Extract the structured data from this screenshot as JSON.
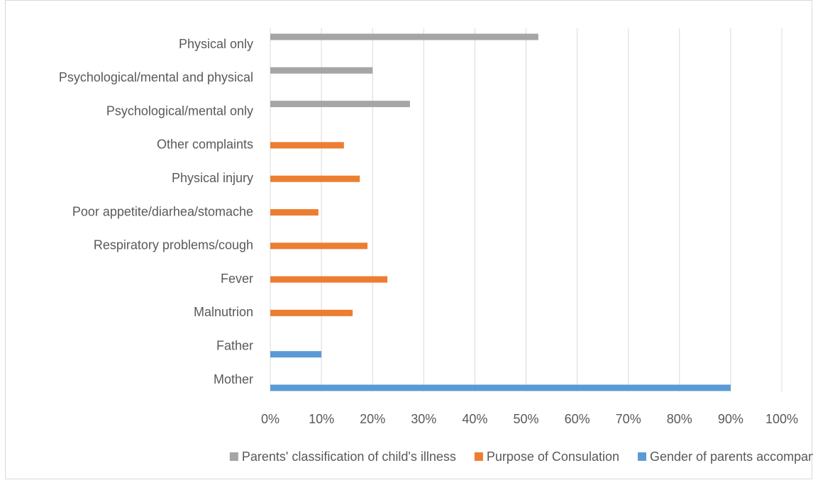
{
  "chart_data": {
    "type": "bar",
    "orientation": "horizontal",
    "categories": [
      "Physical only",
      "Psychological/mental and physical",
      "Psychological/mental only",
      "Other complaints",
      "Physical injury",
      "Poor appetite/diarhea/stomache",
      "Respiratory problems/cough",
      "Fever",
      "Malnutrion",
      "Father",
      "Mother"
    ],
    "series": [
      {
        "name": "Parents' classification of child's illness",
        "color": "#a5a5a5",
        "values": [
          52.4,
          20,
          27.3,
          null,
          null,
          null,
          null,
          null,
          null,
          null,
          null
        ]
      },
      {
        "name": "Purpose of Consulation",
        "color": "#ed7d31",
        "values": [
          null,
          null,
          null,
          14.4,
          17.5,
          9.4,
          19,
          22.9,
          16.1,
          null,
          null
        ]
      },
      {
        "name": "Gender of parents accompanied",
        "color": "#5b9bd5",
        "values": [
          null,
          null,
          null,
          null,
          null,
          null,
          null,
          null,
          null,
          10,
          90
        ]
      }
    ],
    "xlim": [
      0,
      100
    ],
    "xticks": [
      {
        "value": 0,
        "label": "0%"
      },
      {
        "value": 10,
        "label": "10%"
      },
      {
        "value": 20,
        "label": "20%"
      },
      {
        "value": 30,
        "label": "30%"
      },
      {
        "value": 40,
        "label": "40%"
      },
      {
        "value": 50,
        "label": "50%"
      },
      {
        "value": 60,
        "label": "60%"
      },
      {
        "value": 70,
        "label": "70%"
      },
      {
        "value": 80,
        "label": "80%"
      },
      {
        "value": 90,
        "label": "90%"
      },
      {
        "value": 100,
        "label": "100%"
      }
    ],
    "grid": true,
    "legend": "bottom"
  }
}
